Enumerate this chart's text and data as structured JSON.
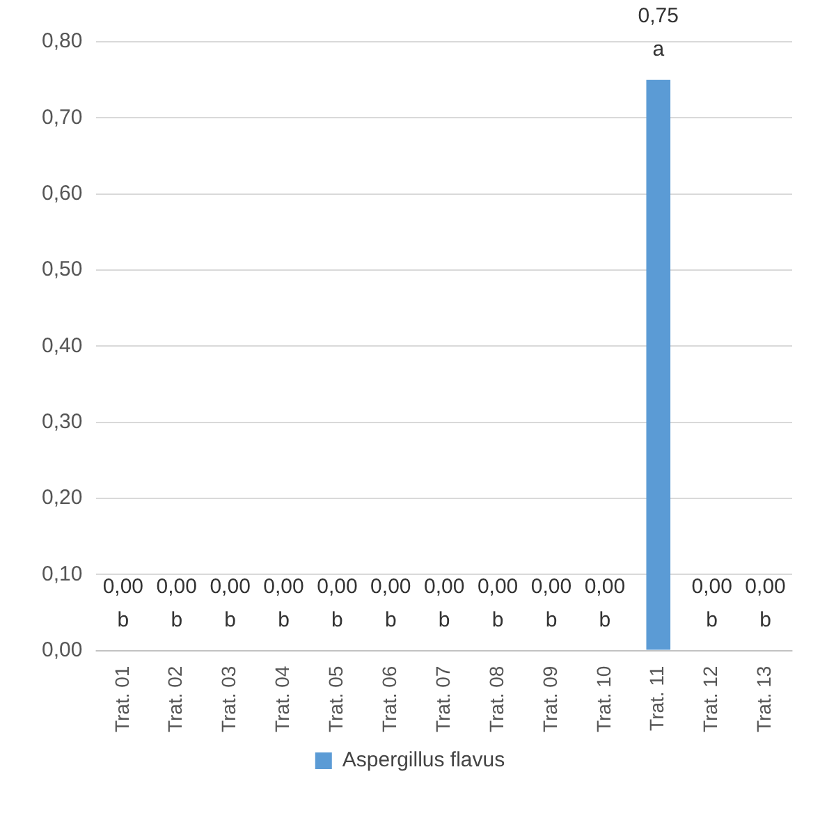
{
  "chart_data": {
    "type": "bar",
    "categories": [
      "Trat. 01",
      "Trat. 02",
      "Trat. 03",
      "Trat. 04",
      "Trat. 05",
      "Trat. 06",
      "Trat. 07",
      "Trat. 08",
      "Trat. 09",
      "Trat. 10",
      "Trat. 11",
      "Trat. 12",
      "Trat. 13"
    ],
    "series": [
      {
        "name": "Aspergillus flavus",
        "color": "#5b9bd5",
        "values": [
          0,
          0,
          0,
          0,
          0,
          0,
          0,
          0,
          0,
          0,
          0.75,
          0,
          0
        ],
        "value_labels": [
          "0,00",
          "0,00",
          "0,00",
          "0,00",
          "0,00",
          "0,00",
          "0,00",
          "0,00",
          "0,00",
          "0,00",
          "0,75",
          "0,00",
          "0,00"
        ]
      }
    ],
    "ylim": [
      0,
      0.8
    ],
    "yticks": [
      {
        "value": 0,
        "label": "0,00"
      },
      {
        "value": 0.1,
        "label": "0,10"
      },
      {
        "value": 0.2,
        "label": "0,20"
      },
      {
        "value": 0.3,
        "label": "0,30"
      },
      {
        "value": 0.4,
        "label": "0,40"
      },
      {
        "value": 0.5,
        "label": "0,50"
      },
      {
        "value": 0.6,
        "label": "0,60"
      },
      {
        "value": 0.7,
        "label": "0,70"
      },
      {
        "value": 0.8,
        "label": "0,80"
      }
    ],
    "annotations": [
      {
        "text": "b",
        "x": "Trat. 01",
        "y": 0
      },
      {
        "text": "b",
        "x": "Trat. 02",
        "y": 0
      },
      {
        "text": "b",
        "x": "Trat. 03",
        "y": 0
      },
      {
        "text": "b",
        "x": "Trat. 04",
        "y": 0
      },
      {
        "text": "b",
        "x": "Trat. 05",
        "y": 0
      },
      {
        "text": "b",
        "x": "Trat. 06",
        "y": 0
      },
      {
        "text": "b",
        "x": "Trat. 07",
        "y": 0
      },
      {
        "text": "b",
        "x": "Trat. 08",
        "y": 0
      },
      {
        "text": "b",
        "x": "Trat. 09",
        "y": 0
      },
      {
        "text": "b",
        "x": "Trat. 10",
        "y": 0
      },
      {
        "text": "a",
        "x": "Trat. 11",
        "y": 0.75
      },
      {
        "text": "b",
        "x": "Trat. 12",
        "y": 0
      },
      {
        "text": "b",
        "x": "Trat. 13",
        "y": 0
      }
    ],
    "grid": "y",
    "legend": "bottom"
  }
}
